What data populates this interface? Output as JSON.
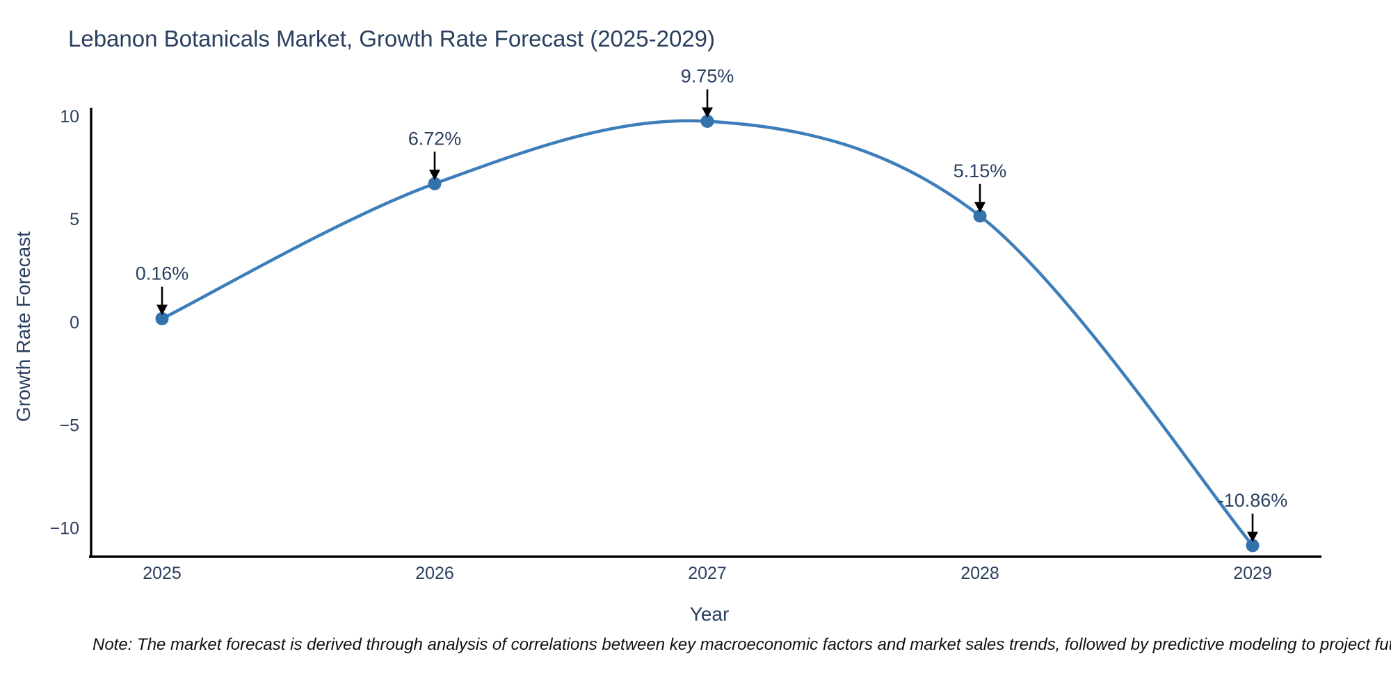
{
  "chart": {
    "note": "Note: The market forecast is derived through analysis of correlations between key macroeconomic factors and market sales trends, followed by predictive modeling to project future sales"
  },
  "chart_data": {
    "type": "line",
    "title": "Lebanon Botanicals Market, Growth Rate Forecast (2025-2029)",
    "x": [
      2025,
      2026,
      2027,
      2028,
      2029
    ],
    "series": [
      {
        "name": "Growth Rate Forecast",
        "values": [
          0.16,
          6.72,
          9.75,
          5.15,
          -10.86
        ]
      }
    ],
    "point_labels": [
      "0.16%",
      "6.72%",
      "9.75%",
      "5.15%",
      "-10.86%"
    ],
    "xlabel": "Year",
    "ylabel": "Growth Rate Forecast",
    "xticks": [
      "2025",
      "2026",
      "2027",
      "2028",
      "2029"
    ],
    "yticks": [
      10,
      5,
      0,
      -5,
      -10
    ],
    "ylim": [
      -11.6,
      10.4
    ],
    "line_shape": "spline",
    "grid": false,
    "legend_position": "none",
    "annotation_style": "black-down-arrow",
    "colors": {
      "line": "#3d7eba",
      "marker": "#3372ab",
      "arrow": "#000000",
      "text": "#2a3f5f",
      "axis": "#000000",
      "note_text": "#111111"
    }
  }
}
